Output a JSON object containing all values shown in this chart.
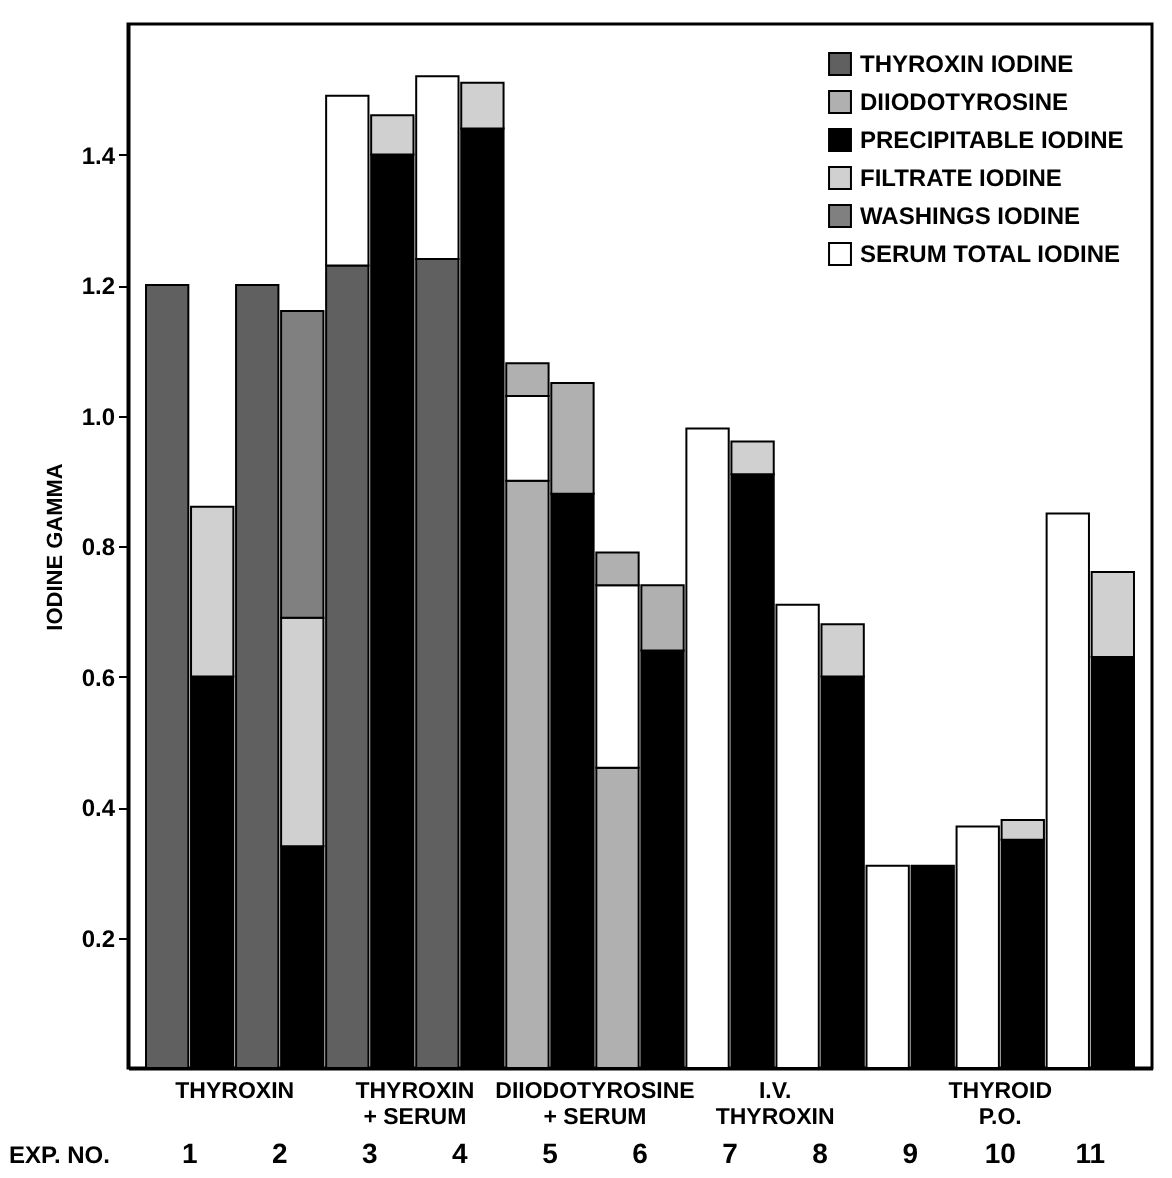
{
  "chart_data": {
    "type": "bar",
    "stacked": true,
    "xlabel": "EXP. NO.",
    "ylabel": "IODINE GAMMA",
    "categories": [
      "1",
      null,
      "2",
      null,
      "3",
      null,
      "4",
      null,
      "5",
      null,
      "6",
      null,
      "7",
      null,
      "8",
      null,
      "9",
      null,
      "10",
      null,
      "11",
      null
    ],
    "series": [
      {
        "name": "THYROXIN IODINE",
        "color": "#606060",
        "values": [
          1.2,
          null,
          1.2,
          null,
          1.23,
          null,
          1.24,
          null,
          null,
          null,
          null,
          null,
          null,
          null,
          null,
          null,
          null,
          null,
          null,
          null,
          null,
          null
        ]
      },
      {
        "name": "DIIODOTYROSINE",
        "color": "#b0b0b0",
        "values": [
          null,
          null,
          null,
          null,
          null,
          null,
          null,
          null,
          0.9,
          null,
          0.46,
          null,
          null,
          null,
          null,
          null,
          null,
          null,
          null,
          null,
          null,
          null
        ]
      },
      {
        "name": "PRECIPITABLE IODINE",
        "color": "#000000",
        "values": [
          null,
          0.6,
          null,
          0.34,
          null,
          1.4,
          null,
          1.44,
          null,
          0.88,
          null,
          0.64,
          null,
          0.91,
          null,
          0.6,
          null,
          0.31,
          null,
          0.35,
          null,
          0.63
        ]
      },
      {
        "name": "FILTRATE IODINE",
        "color": "#d0d0d0",
        "values": [
          null,
          0.26,
          null,
          0.35,
          null,
          0.06,
          null,
          0.07,
          null,
          null,
          null,
          null,
          null,
          0.05,
          null,
          0.08,
          null,
          null,
          null,
          0.03,
          null,
          0.13
        ]
      },
      {
        "name": "WASHINGS IODINE",
        "color": "#808080",
        "values": [
          null,
          null,
          null,
          0.47,
          null,
          null,
          null,
          null,
          null,
          null,
          null,
          null,
          null,
          null,
          null,
          null,
          null,
          null,
          null,
          null,
          null,
          null
        ]
      },
      {
        "name": "SERUM TOTAL IODINE",
        "color": "#ffffff",
        "values": [
          null,
          null,
          null,
          null,
          0.26,
          null,
          0.28,
          null,
          0.13,
          null,
          0.28,
          null,
          0.98,
          null,
          0.71,
          null,
          0.31,
          null,
          0.37,
          null,
          0.85,
          null
        ]
      },
      {
        "color": "#b0b0b0",
        "values": [
          null,
          null,
          null,
          null,
          null,
          null,
          null,
          null,
          0.05,
          0.17,
          0.05,
          0.1,
          null,
          null,
          null,
          null,
          null,
          null,
          null,
          null,
          null,
          null
        ]
      }
    ],
    "ylim": [
      0,
      1.6
    ],
    "yticks": [
      0.2,
      0.4,
      0.6,
      0.8,
      {
        "value": 1.0,
        "label": "1.0"
      },
      1.2,
      1.4
    ],
    "legend": "top right",
    "annotations": [
      "THYROXIN",
      "THYROXIN\n+ SERUM",
      "DIIODOTYROSINE\n+ SERUM",
      "I.V.\nTHYROXIN",
      "THYROID\nP.O."
    ]
  }
}
